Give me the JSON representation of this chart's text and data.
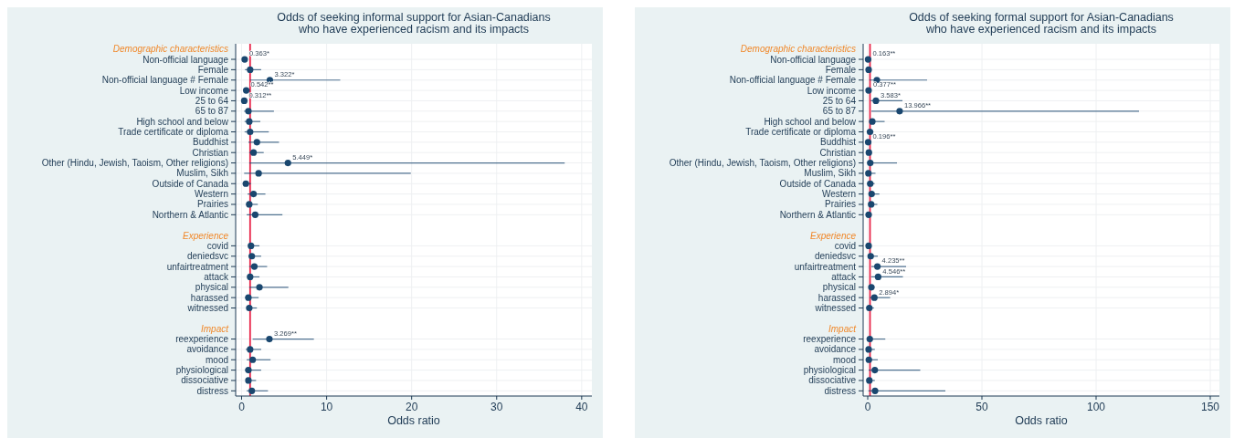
{
  "chart_data": [
    {
      "type": "scatter",
      "orientation": "horizontal",
      "title": "Odds of seeking informal support for Asian-Canadians\nwho have experienced racism and its impacts",
      "xlabel": "Odds ratio",
      "categories": [
        "Demographic characteristics",
        "Non-official language",
        "Female",
        "Non-official language # Female",
        "Low income",
        "25 to 64",
        "65 to 87",
        "High school and below",
        "Trade certificate or diploma",
        "Buddhist",
        "Christian",
        "Other (Hindu, Jewish, Taoism, Other religions)",
        "Muslim, Sikh",
        "Outside of Canada",
        "Western",
        "Prairies",
        "Northern & Atlantic",
        null,
        "Experience",
        "covid",
        "deniedsvc",
        "unfairtreatment",
        "attack",
        "physical",
        "harassed",
        "witnessed",
        null,
        "Impact",
        "reexperience",
        "avoidance",
        "mood",
        "physiological",
        "dissociative",
        "distress"
      ],
      "series": [
        {
          "color": "#1a476f",
          "values": [
            null,
            0.363,
            1.0,
            3.322,
            0.542,
            0.312,
            0.8,
            0.9,
            1.0,
            1.8,
            1.4,
            5.449,
            2.0,
            0.5,
            1.4,
            0.9,
            1.6,
            null,
            null,
            1.1,
            1.2,
            1.5,
            1.0,
            2.1,
            0.8,
            0.9,
            null,
            null,
            3.269,
            1.0,
            1.3,
            0.8,
            0.8,
            1.2
          ],
          "errors": [
            null,
            [
              0.2,
              0.7
            ],
            [
              0.4,
              2.3
            ],
            [
              1.0,
              11.6
            ],
            [
              0.3,
              1.0
            ],
            [
              0.15,
              0.65
            ],
            [
              0.3,
              3.8
            ],
            [
              0.35,
              2.2
            ],
            [
              0.35,
              3.2
            ],
            [
              0.8,
              4.4
            ],
            [
              0.9,
              2.6
            ],
            [
              0.9,
              38.0
            ],
            [
              0.3,
              19.9
            ],
            [
              0.2,
              1.1
            ],
            [
              0.7,
              2.8
            ],
            [
              0.5,
              1.9
            ],
            [
              0.6,
              4.8
            ],
            null,
            null,
            [
              0.8,
              2.1
            ],
            [
              0.8,
              2.3
            ],
            [
              0.9,
              3.0
            ],
            [
              0.8,
              2.1
            ],
            [
              0.9,
              5.5
            ],
            [
              0.4,
              2.0
            ],
            [
              0.6,
              1.8
            ],
            null,
            null,
            [
              1.3,
              8.5
            ],
            [
              0.5,
              2.3
            ],
            [
              0.6,
              3.4
            ],
            [
              0.4,
              2.3
            ],
            [
              0.5,
              1.7
            ],
            [
              0.6,
              3.1
            ]
          ],
          "value_labels": [
            null,
            "0.363*",
            null,
            "3.322*",
            "0.542**",
            "0.312**",
            null,
            null,
            null,
            null,
            null,
            "5.449*",
            null,
            null,
            null,
            null,
            null,
            null,
            null,
            null,
            null,
            null,
            null,
            null,
            null,
            null,
            null,
            null,
            "3.269**",
            null,
            null,
            null,
            null,
            null
          ]
        }
      ],
      "xlim": [
        -0.7,
        41.2
      ],
      "xticks": [
        0,
        10,
        20,
        30,
        40
      ],
      "grid": true,
      "marker": "circle",
      "ref_lines": [
        {
          "axis": "x",
          "value": 1,
          "color": "#e8264a"
        }
      ]
    },
    {
      "type": "scatter",
      "orientation": "horizontal",
      "title": "Odds of seeking formal support for Asian-Canadians\nwho have experienced racism and its impacts",
      "xlabel": "Odds ratio",
      "categories": [
        "Demographic characteristics",
        "Non-official language",
        "Female",
        "Non-official language # Female",
        "Low income",
        "25 to 64",
        "65 to 87",
        "High school and below",
        "Trade certificate or diploma",
        "Buddhist",
        "Christian",
        "Other (Hindu, Jewish, Taoism, Other religions)",
        "Muslim, Sikh",
        "Outside of Canada",
        "Western",
        "Prairies",
        "Northern & Atlantic",
        null,
        "Experience",
        "covid",
        "deniedsvc",
        "unfairtreatment",
        "attack",
        "physical",
        "harassed",
        "witnessed",
        null,
        "Impact",
        "reexperience",
        "avoidance",
        "mood",
        "physiological",
        "dissociative",
        "distress"
      ],
      "series": [
        {
          "color": "#1a476f",
          "values": [
            null,
            0.163,
            0.4,
            4.0,
            0.377,
            3.583,
            13.966,
            2.0,
            1.0,
            0.196,
            0.5,
            1.1,
            0.3,
            1.1,
            1.7,
            1.5,
            0.4,
            null,
            null,
            0.4,
            1.3,
            4.235,
            4.546,
            1.6,
            2.894,
            0.7,
            null,
            null,
            0.9,
            0.4,
            0.5,
            3.1,
            0.7,
            3.2
          ],
          "errors": [
            null,
            null,
            null,
            [
              0.7,
              26
            ],
            null,
            [
              1.3,
              15.2
            ],
            [
              1.6,
              118.8
            ],
            [
              0.7,
              7.4
            ],
            [
              0.4,
              2.5
            ],
            null,
            null,
            [
              0.1,
              12.8
            ],
            [
              0.05,
              3.4
            ],
            [
              0.4,
              3.0
            ],
            [
              0.6,
              5.1
            ],
            [
              0.5,
              4.2
            ],
            [
              0.1,
              1.3
            ],
            null,
            null,
            null,
            [
              0.4,
              4.4
            ],
            [
              1.6,
              16.8
            ],
            [
              1.5,
              15.4
            ],
            [
              0.7,
              3.0
            ],
            [
              0.9,
              9.8
            ],
            [
              0.2,
              2.7
            ],
            null,
            null,
            [
              0.1,
              7.7
            ],
            [
              0.05,
              3.1
            ],
            [
              0.1,
              4.4
            ],
            [
              0.4,
              23
            ],
            [
              0.2,
              3.1
            ],
            [
              0.3,
              34
            ]
          ],
          "value_labels": [
            null,
            "0.163**",
            null,
            null,
            "0.377**",
            "3.583*",
            "13.966**",
            null,
            null,
            "0.196**",
            null,
            null,
            null,
            null,
            null,
            null,
            null,
            null,
            null,
            null,
            null,
            "4.235**",
            "4.546**",
            null,
            "2.894*",
            null,
            null,
            null,
            null,
            null,
            null,
            null,
            null,
            null
          ]
        }
      ],
      "xlim": [
        -2,
        154
      ],
      "xticks": [
        0,
        50,
        100,
        150
      ],
      "grid": true,
      "marker": "circle",
      "ref_lines": [
        {
          "axis": "x",
          "value": 1,
          "color": "#e8264a"
        }
      ]
    }
  ]
}
